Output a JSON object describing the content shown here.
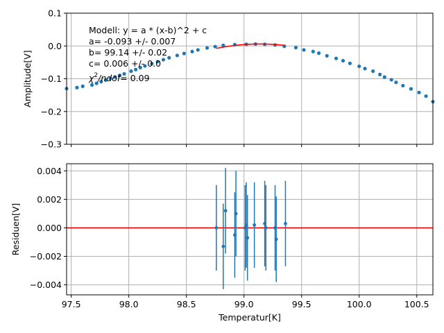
{
  "chart_data": [
    {
      "type": "scatter",
      "id": "top",
      "ylabel": "Amplitude[V]",
      "xlim": [
        97.46,
        100.64
      ],
      "ylim": [
        -0.3,
        0.1
      ],
      "yticks": [
        0.1,
        0.0,
        -0.1,
        -0.2,
        -0.3
      ],
      "ytick_labels": [
        "0.1",
        "0.0",
        "−0.1",
        "−0.2",
        "−0.3"
      ],
      "xticks": [
        97.5,
        98.0,
        98.5,
        99.0,
        99.5,
        100.0,
        100.5
      ],
      "grid": true,
      "series": [
        {
          "kind": "points",
          "color": "#1f77b4",
          "x": [
            97.46,
            97.55,
            97.6,
            97.68,
            97.72,
            97.76,
            97.8,
            97.84,
            97.88,
            97.92,
            97.96,
            98.02,
            98.06,
            98.1,
            98.14,
            98.2,
            98.25,
            98.3,
            98.35,
            98.42,
            98.48,
            98.55,
            98.6,
            98.68,
            98.75,
            98.82,
            98.92,
            99.02,
            99.1,
            99.18,
            99.27,
            99.35,
            99.45,
            99.52,
            99.6,
            99.65,
            99.72,
            99.8,
            99.86,
            99.92,
            100.0,
            100.05,
            100.12,
            100.18,
            100.22,
            100.28,
            100.32,
            100.38,
            100.45,
            100.52,
            100.58,
            100.64
          ],
          "y": [
            -0.13,
            -0.127,
            -0.123,
            -0.119,
            -0.114,
            -0.109,
            -0.104,
            -0.099,
            -0.094,
            -0.09,
            -0.085,
            -0.077,
            -0.072,
            -0.066,
            -0.061,
            -0.054,
            -0.048,
            -0.042,
            -0.036,
            -0.029,
            -0.023,
            -0.017,
            -0.012,
            -0.006,
            -0.002,
            0.002,
            0.004,
            0.005,
            0.006,
            0.005,
            0.003,
            -0.001,
            -0.005,
            -0.012,
            -0.017,
            -0.022,
            -0.03,
            -0.038,
            -0.045,
            -0.053,
            -0.062,
            -0.069,
            -0.077,
            -0.087,
            -0.095,
            -0.103,
            -0.111,
            -0.121,
            -0.131,
            -0.142,
            -0.153,
            -0.17
          ]
        },
        {
          "kind": "line",
          "color": "#ff0000",
          "x_range": [
            98.76,
            99.36
          ],
          "model": {
            "a": -0.093,
            "b": 99.14,
            "c": 0.006
          }
        }
      ],
      "annotations": [
        "Modell: y = a * (x-b)^2 + c",
        "a= -0.093 +/- 0.007",
        "b= 99.14 +/- 0.02",
        "c= 0.006 +/- 0.0"
      ],
      "chi_annotation": {
        "symbol": "χ",
        "sup": "2",
        "rest": "/ndof",
        "value": "= 0.09"
      }
    },
    {
      "type": "scatter",
      "id": "bottom",
      "xlabel": "Temperatur[K]",
      "ylabel": "Residuen[V]",
      "xlim": [
        97.46,
        100.64
      ],
      "ylim": [
        -0.0047,
        0.0045
      ],
      "xticks": [
        97.5,
        98.0,
        98.5,
        99.0,
        99.5,
        100.0,
        100.5
      ],
      "xtick_labels": [
        "97.5",
        "98.0",
        "98.5",
        "99.0",
        "99.5",
        "100.0",
        "100.5"
      ],
      "yticks": [
        0.004,
        0.002,
        0.0,
        -0.002,
        -0.004
      ],
      "ytick_labels": [
        "0.004",
        "0.002",
        "0.000",
        "−0.002",
        "−0.004"
      ],
      "grid": true,
      "zero_line_color": "#ff0000",
      "series": [
        {
          "kind": "errorbar",
          "color": "#1f77b4",
          "x": [
            98.76,
            98.82,
            98.84,
            98.92,
            98.93,
            99.01,
            99.02,
            99.03,
            99.09,
            99.18,
            99.19,
            99.27,
            99.28,
            99.36
          ],
          "y": [
            0.0,
            -0.0013,
            0.0012,
            -0.0005,
            0.001,
            0.0,
            0.0002,
            -0.0007,
            0.0002,
            0.0003,
            0.0,
            0.0,
            -0.0008,
            0.0003
          ],
          "yerr": [
            0.003,
            0.003,
            0.003,
            0.003,
            0.003,
            0.003,
            0.003,
            0.003,
            0.003,
            0.003,
            0.003,
            0.003,
            0.003,
            0.003
          ]
        }
      ]
    }
  ]
}
